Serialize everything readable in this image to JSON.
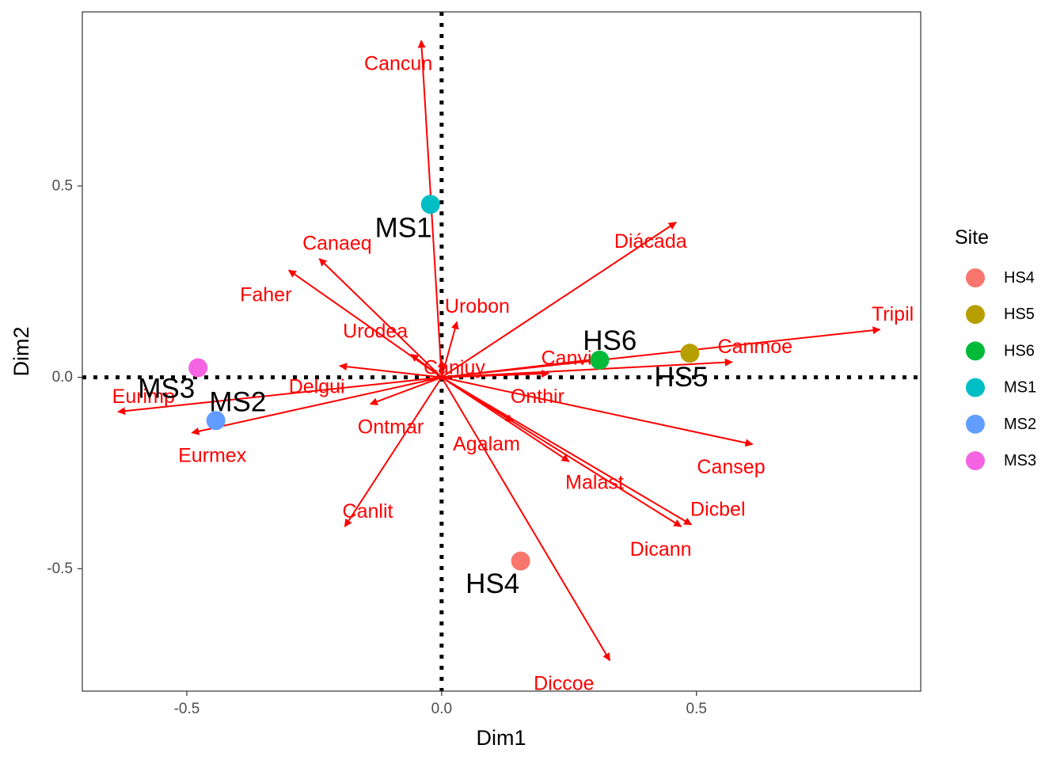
{
  "chart_data": {
    "type": "scatter",
    "subtype": "biplot",
    "title": "",
    "xlabel": "Dim1",
    "ylabel": "Dim2",
    "xlim": [
      -0.705,
      0.94
    ],
    "ylim": [
      -0.82,
      0.955
    ],
    "x_ticks": [
      {
        "value": -0.5,
        "label": "-0.5"
      },
      {
        "value": 0.0,
        "label": "0.0"
      },
      {
        "value": 0.5,
        "label": "0.5"
      }
    ],
    "y_ticks": [
      {
        "value": -0.5,
        "label": "-0.5"
      },
      {
        "value": 0.0,
        "label": "0.0"
      },
      {
        "value": 0.5,
        "label": "0.5"
      }
    ],
    "grid": false,
    "reference_lines": {
      "x": 0,
      "y": 0,
      "style": "dotted",
      "color": "#000000"
    },
    "legend": {
      "title": "Site",
      "position": "right"
    },
    "sites": [
      {
        "name": "HS4",
        "x": 0.155,
        "y": -0.48,
        "color": "#F8766D"
      },
      {
        "name": "HS5",
        "x": 0.487,
        "y": 0.063,
        "color": "#B79F00"
      },
      {
        "name": "HS6",
        "x": 0.31,
        "y": 0.045,
        "color": "#00BA38"
      },
      {
        "name": "MS1",
        "x": -0.022,
        "y": 0.452,
        "color": "#00BFC4"
      },
      {
        "name": "MS2",
        "x": -0.443,
        "y": -0.113,
        "color": "#619CFF"
      },
      {
        "name": "MS3",
        "x": -0.478,
        "y": 0.025,
        "color": "#F564E3"
      }
    ],
    "site_labels": [
      {
        "name": "HS4",
        "x": 0.1,
        "y": -0.54
      },
      {
        "name": "HS5",
        "x": 0.47,
        "y": 0.0
      },
      {
        "name": "HS6",
        "x": 0.33,
        "y": 0.095
      },
      {
        "name": "MS1",
        "x": -0.075,
        "y": 0.39
      },
      {
        "name": "MS2",
        "x": -0.4,
        "y": -0.065
      },
      {
        "name": "MS3",
        "x": -0.54,
        "y": -0.03
      }
    ],
    "variable_color": "#ff0000",
    "variables": [
      {
        "name": "Cancun",
        "x": -0.04,
        "y": 0.88,
        "label_x": -0.085,
        "label_y": 0.82
      },
      {
        "name": "Diácada",
        "x": 0.46,
        "y": 0.405,
        "label_x": 0.41,
        "label_y": 0.355
      },
      {
        "name": "Canaeq",
        "x": -0.24,
        "y": 0.31,
        "label_x": -0.205,
        "label_y": 0.35
      },
      {
        "name": "Faher",
        "x": -0.3,
        "y": 0.28,
        "label_x": -0.345,
        "label_y": 0.215
      },
      {
        "name": "Urobon",
        "x": 0.03,
        "y": 0.145,
        "label_x": 0.07,
        "label_y": 0.185
      },
      {
        "name": "Urodea",
        "x": -0.06,
        "y": 0.06,
        "label_x": -0.13,
        "label_y": 0.12
      },
      {
        "name": "Tripil",
        "x": 0.86,
        "y": 0.125,
        "label_x": 0.885,
        "label_y": 0.165
      },
      {
        "name": "Canmoe",
        "x": 0.57,
        "y": 0.04,
        "label_x": 0.615,
        "label_y": 0.08
      },
      {
        "name": "Canvi",
        "x": 0.32,
        "y": 0.05,
        "label_x": 0.245,
        "label_y": 0.05
      },
      {
        "name": "Canjuy",
        "x": 0.0,
        "y": 0.045,
        "label_x": 0.025,
        "label_y": 0.025
      },
      {
        "name": "Delgui",
        "x": -0.2,
        "y": 0.03,
        "label_x": -0.245,
        "label_y": -0.025
      },
      {
        "name": "Eurimp",
        "x": -0.635,
        "y": -0.09,
        "label_x": -0.585,
        "label_y": -0.05
      },
      {
        "name": "Onthir",
        "x": 0.21,
        "y": 0.01,
        "label_x": 0.188,
        "label_y": -0.05
      },
      {
        "name": "Ontmar",
        "x": -0.14,
        "y": -0.07,
        "label_x": -0.1,
        "label_y": -0.13
      },
      {
        "name": "Eurmex",
        "x": -0.49,
        "y": -0.145,
        "label_x": -0.45,
        "label_y": -0.205
      },
      {
        "name": "Cansep",
        "x": 0.61,
        "y": -0.175,
        "label_x": 0.568,
        "label_y": -0.235
      },
      {
        "name": "Agalam",
        "x": 0.14,
        "y": -0.115,
        "label_x": 0.088,
        "label_y": -0.175
      },
      {
        "name": "Malast",
        "x": 0.25,
        "y": -0.22,
        "label_x": 0.3,
        "label_y": -0.275
      },
      {
        "name": "Canlit",
        "x": -0.19,
        "y": -0.39,
        "label_x": -0.145,
        "label_y": -0.35
      },
      {
        "name": "Dicbel",
        "x": 0.49,
        "y": -0.385,
        "label_x": 0.542,
        "label_y": -0.345
      },
      {
        "name": "Dicann",
        "x": 0.47,
        "y": -0.39,
        "label_x": 0.43,
        "label_y": -0.45
      },
      {
        "name": "Diccoe",
        "x": 0.33,
        "y": -0.74,
        "label_x": 0.24,
        "label_y": -0.8
      }
    ]
  }
}
